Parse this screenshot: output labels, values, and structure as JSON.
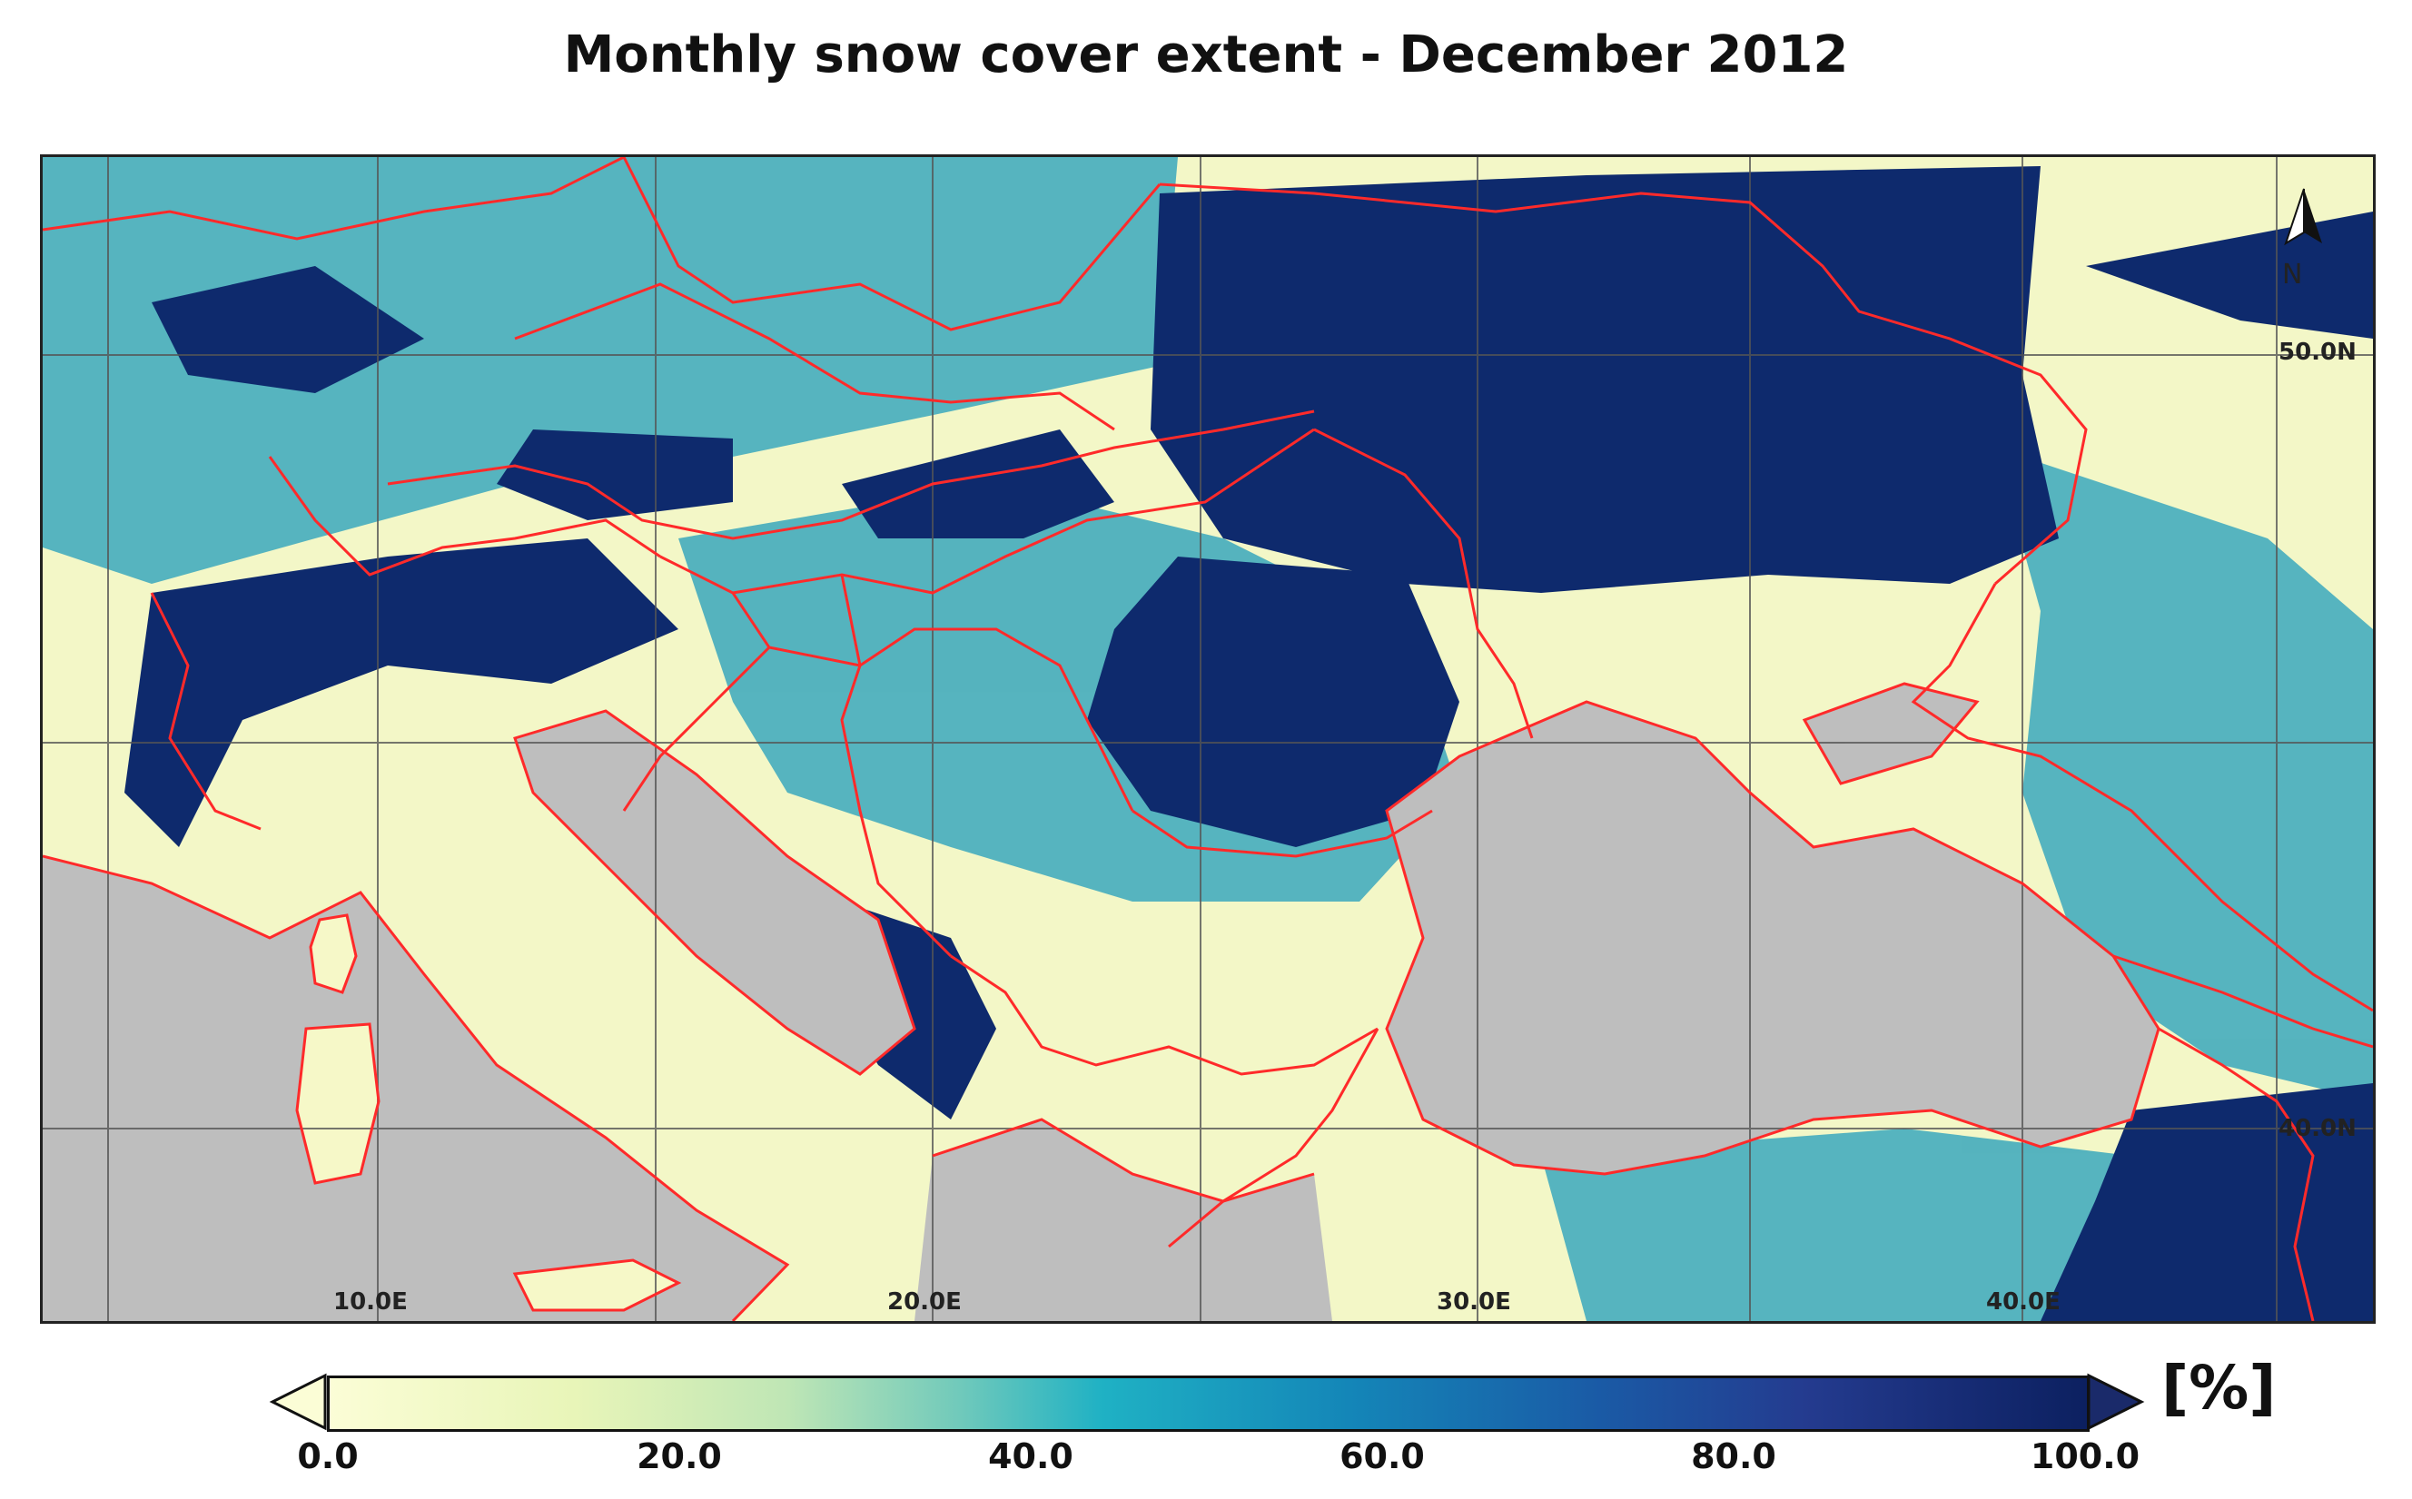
{
  "title": "Monthly snow cover extent - December 2012",
  "map": {
    "longitude_labels": [
      "10.0E",
      "20.0E",
      "30.0E",
      "40.0E"
    ],
    "latitude_labels": [
      "50.0N",
      "40.0N"
    ],
    "north_arrow": {
      "icon": "north-arrow-icon",
      "label": "N"
    },
    "colors": {
      "sea_no_data": "#bebebe",
      "borders": "#ff2a2a",
      "graticule": "#555555"
    }
  },
  "legend": {
    "unit": "[%]",
    "ticks": [
      "0.0",
      "20.0",
      "40.0",
      "60.0",
      "80.0",
      "100.0"
    ],
    "min": 0,
    "max": 100,
    "color_stops": [
      "#fbfdd6",
      "#bfe6b5",
      "#1fb1c4",
      "#1a5ba6",
      "#0c2060"
    ]
  }
}
